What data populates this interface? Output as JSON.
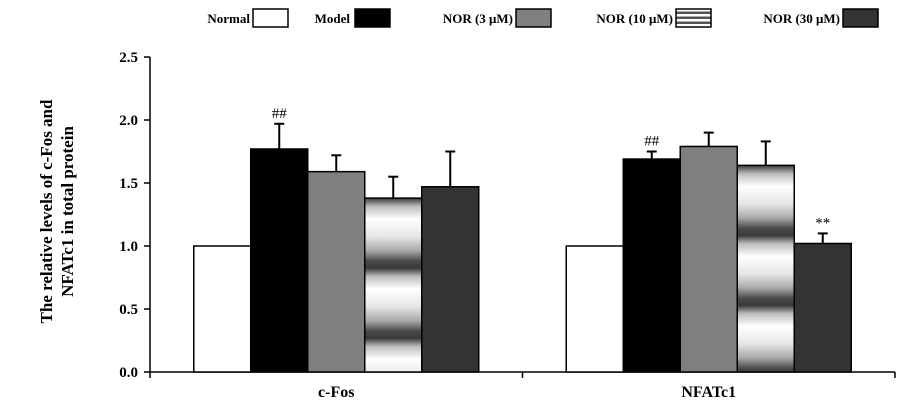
{
  "chart_data": {
    "type": "bar",
    "title": "",
    "xlabel": "",
    "ylabel_lines": [
      "The relative levels of c-Fos and",
      "NFATc1 in total protein"
    ],
    "ylim": [
      0,
      2.5
    ],
    "yticks": [
      "0.0",
      "0.5",
      "1.0",
      "1.5",
      "2.0",
      "2.5"
    ],
    "categories": [
      "c-Fos",
      "NFATc1"
    ],
    "legend_position": "top",
    "series": [
      {
        "name": "Normal",
        "values": [
          1.0,
          1.0
        ],
        "errors": [
          0,
          0
        ],
        "fill": "#ffffff",
        "pattern": "none"
      },
      {
        "name": "Model",
        "values": [
          1.77,
          1.69
        ],
        "errors": [
          0.2,
          0.06
        ],
        "fill": "#000000",
        "pattern": "none"
      },
      {
        "name": "NOR (3 μM)",
        "values": [
          1.59,
          1.79
        ],
        "errors": [
          0.13,
          0.11
        ],
        "fill": "#7f7f7f",
        "pattern": "none"
      },
      {
        "name": "NOR (10 μM)",
        "values": [
          1.38,
          1.64
        ],
        "errors": [
          0.17,
          0.19
        ],
        "fill": "#d8d8d8",
        "pattern": "stripes"
      },
      {
        "name": "NOR (30 μM)",
        "values": [
          1.47,
          1.02
        ],
        "errors": [
          0.28,
          0.08
        ],
        "fill": "#333333",
        "pattern": "none"
      }
    ],
    "annotations": [
      {
        "category": "c-Fos",
        "series": "Model",
        "text": "##"
      },
      {
        "category": "NFATc1",
        "series": "Model",
        "text": "##"
      },
      {
        "category": "NFATc1",
        "series": "NOR (30 μM)",
        "text": "**"
      }
    ]
  }
}
